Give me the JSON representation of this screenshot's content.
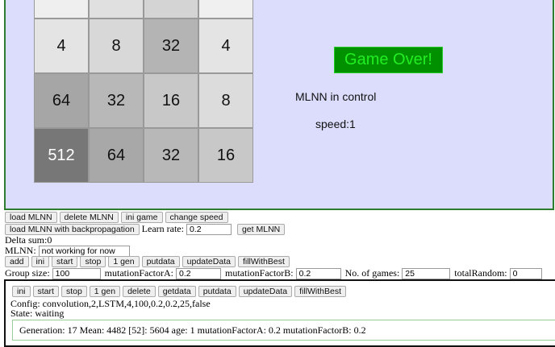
{
  "game": {
    "tiles": [
      {
        "value": "",
        "color": "#efefef",
        "text": "#111"
      },
      {
        "value": "",
        "color": "#e0e0e0",
        "text": "#111"
      },
      {
        "value": "",
        "color": "#d4d4d4",
        "text": "#111"
      },
      {
        "value": "",
        "color": "#f0f0f0",
        "text": "#111"
      },
      {
        "value": "4",
        "color": "#e4e4e4",
        "text": "#111"
      },
      {
        "value": "8",
        "color": "#d8d8d8",
        "text": "#111"
      },
      {
        "value": "32",
        "color": "#b4b4b4",
        "text": "#111"
      },
      {
        "value": "4",
        "color": "#e4e4e4",
        "text": "#111"
      },
      {
        "value": "64",
        "color": "#a6a6a6",
        "text": "#111"
      },
      {
        "value": "32",
        "color": "#b8b8b8",
        "text": "#111"
      },
      {
        "value": "16",
        "color": "#c8c8c8",
        "text": "#111"
      },
      {
        "value": "8",
        "color": "#dcdcdc",
        "text": "#111"
      },
      {
        "value": "512",
        "color": "#777777",
        "text": "#ffffff"
      },
      {
        "value": "64",
        "color": "#a8a8a8",
        "text": "#111"
      },
      {
        "value": "32",
        "color": "#b8b8b8",
        "text": "#111"
      },
      {
        "value": "16",
        "color": "#c8c8c8",
        "text": "#111"
      }
    ],
    "game_over": "Game Over!",
    "control": "MLNN in control",
    "speed": "speed:1"
  },
  "controls": {
    "row1": [
      "load MLNN",
      "delete MLNN",
      "ini game",
      "change speed"
    ],
    "backprop": "load MLNN with backpropagation",
    "learn_rate_label": "Learn rate:",
    "learn_rate": "0.2",
    "get_mlnn": "get MLNN",
    "delta_sum": "Delta sum:0",
    "mlnn_label": "MLNN:",
    "mlnn_value": "not working for now",
    "row3": [
      "add",
      "ini",
      "start",
      "stop",
      "1 gen",
      "putdata",
      "updateData",
      "fillWithBest"
    ],
    "group_size_label": "Group size:",
    "group_size": "100",
    "mfa_label": "mutationFactorA:",
    "mfa": "0.2",
    "mfb_label": "mutationFactorB:",
    "mfb": "0.2",
    "games_label": "No. of games:",
    "games": "25",
    "random_label": "totalRandom:",
    "random": "0"
  },
  "panel": {
    "buttons": [
      "ini",
      "start",
      "stop",
      "1 gen",
      "delete",
      "getdata",
      "putdata",
      "updateData",
      "fillWithBest"
    ],
    "config": "Config: convolution,2,LSTM,4,100,0.2,0.2,25,false",
    "state": "State: waiting",
    "generation": "Generation: 17 Mean: 4482 [52]: 5604 age: 1 mutationFactorA: 0.2 mutationFactorB: 0.2"
  }
}
